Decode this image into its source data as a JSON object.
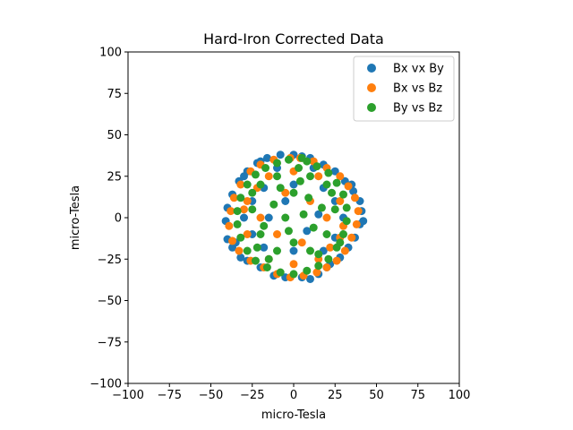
{
  "chart_data": {
    "type": "scatter",
    "title": "Hard-Iron Corrected Data",
    "xlabel": "micro-Tesla",
    "ylabel": "micro-Tesla",
    "xlim": [
      -100,
      100
    ],
    "ylim": [
      -100,
      100
    ],
    "xticks": [
      "−100",
      "−75",
      "−50",
      "−25",
      "0",
      "25",
      "50",
      "75",
      "100"
    ],
    "yticks": [
      "−100",
      "−75",
      "−50",
      "−25",
      "0",
      "25",
      "50",
      "75",
      "100"
    ],
    "grid": false,
    "legend_position": "top-right",
    "series": [
      {
        "name": "Bx vx By",
        "color": "#1f77b4",
        "points": [
          [
            0,
            38
          ],
          [
            -8,
            38
          ],
          [
            -16,
            36
          ],
          [
            -22,
            33
          ],
          [
            -28,
            28
          ],
          [
            -33,
            22
          ],
          [
            -37,
            14
          ],
          [
            -40,
            6
          ],
          [
            -41,
            -2
          ],
          [
            -40,
            -13
          ],
          [
            -37,
            -18
          ],
          [
            -32,
            -24
          ],
          [
            -28,
            -26
          ],
          [
            -20,
            -30
          ],
          [
            -12,
            -35
          ],
          [
            -5,
            -36
          ],
          [
            5,
            -36
          ],
          [
            10,
            -37
          ],
          [
            15,
            -34
          ],
          [
            22,
            -28
          ],
          [
            28,
            -24
          ],
          [
            33,
            -18
          ],
          [
            37,
            -12
          ],
          [
            40,
            -4
          ],
          [
            42,
            -2
          ],
          [
            41,
            4
          ],
          [
            40,
            10
          ],
          [
            36,
            16
          ],
          [
            31,
            22
          ],
          [
            25,
            28
          ],
          [
            18,
            32
          ],
          [
            10,
            36
          ],
          [
            5,
            37
          ],
          [
            -20,
            34
          ],
          [
            -30,
            25
          ],
          [
            35,
            20
          ],
          [
            -35,
            -15
          ],
          [
            20,
            -30
          ],
          [
            -10,
            30
          ],
          [
            12,
            30
          ],
          [
            -25,
            10
          ],
          [
            25,
            10
          ],
          [
            -25,
            -10
          ],
          [
            25,
            -12
          ],
          [
            0,
            20
          ],
          [
            0,
            -20
          ],
          [
            -15,
            0
          ],
          [
            15,
            2
          ],
          [
            -5,
            10
          ],
          [
            8,
            -8
          ],
          [
            30,
            0
          ],
          [
            -30,
            0
          ],
          [
            18,
            18
          ],
          [
            -18,
            18
          ],
          [
            -18,
            -18
          ],
          [
            18,
            -20
          ]
        ]
      },
      {
        "name": "Bx vs Bz",
        "color": "#ff7f0e",
        "points": [
          [
            -2,
            36
          ],
          [
            -12,
            35
          ],
          [
            -20,
            32
          ],
          [
            -26,
            28
          ],
          [
            -32,
            20
          ],
          [
            -36,
            12
          ],
          [
            -38,
            4
          ],
          [
            -39,
            -5
          ],
          [
            -37,
            -14
          ],
          [
            -33,
            -20
          ],
          [
            -26,
            -26
          ],
          [
            -18,
            -30
          ],
          [
            -10,
            -34
          ],
          [
            -2,
            -36
          ],
          [
            6,
            -35
          ],
          [
            14,
            -33
          ],
          [
            20,
            -30
          ],
          [
            26,
            -26
          ],
          [
            31,
            -20
          ],
          [
            35,
            -12
          ],
          [
            38,
            -4
          ],
          [
            39,
            4
          ],
          [
            37,
            12
          ],
          [
            33,
            19
          ],
          [
            28,
            25
          ],
          [
            20,
            30
          ],
          [
            12,
            34
          ],
          [
            4,
            36
          ],
          [
            -15,
            25
          ],
          [
            15,
            25
          ],
          [
            -28,
            10
          ],
          [
            28,
            10
          ],
          [
            -28,
            -10
          ],
          [
            28,
            -12
          ],
          [
            -15,
            -25
          ],
          [
            15,
            -25
          ],
          [
            -5,
            15
          ],
          [
            5,
            -15
          ],
          [
            -20,
            0
          ],
          [
            20,
            0
          ],
          [
            0,
            28
          ],
          [
            0,
            -28
          ],
          [
            -10,
            -10
          ],
          [
            10,
            10
          ],
          [
            -22,
            18
          ],
          [
            22,
            -18
          ],
          [
            30,
            -5
          ],
          [
            -30,
            5
          ]
        ]
      },
      {
        "name": "By vs Bz",
        "color": "#2ca02c",
        "points": [
          [
            5,
            36
          ],
          [
            -3,
            35
          ],
          [
            -10,
            33
          ],
          [
            -17,
            30
          ],
          [
            -23,
            26
          ],
          [
            -28,
            20
          ],
          [
            -32,
            12
          ],
          [
            -34,
            4
          ],
          [
            -34,
            -4
          ],
          [
            -32,
            -12
          ],
          [
            -28,
            -20
          ],
          [
            -23,
            -26
          ],
          [
            -16,
            -30
          ],
          [
            -8,
            -33
          ],
          [
            0,
            -34
          ],
          [
            8,
            -32
          ],
          [
            15,
            -29
          ],
          [
            21,
            -25
          ],
          [
            26,
            -18
          ],
          [
            30,
            -10
          ],
          [
            32,
            -2
          ],
          [
            32,
            6
          ],
          [
            30,
            14
          ],
          [
            26,
            21
          ],
          [
            21,
            27
          ],
          [
            14,
            31
          ],
          [
            8,
            34
          ],
          [
            -20,
            20
          ],
          [
            20,
            20
          ],
          [
            -10,
            25
          ],
          [
            10,
            25
          ],
          [
            -25,
            5
          ],
          [
            25,
            5
          ],
          [
            -20,
            -10
          ],
          [
            20,
            -10
          ],
          [
            -10,
            -20
          ],
          [
            10,
            -20
          ],
          [
            0,
            15
          ],
          [
            0,
            -15
          ],
          [
            -12,
            8
          ],
          [
            12,
            -6
          ],
          [
            -5,
            0
          ],
          [
            6,
            2
          ],
          [
            -15,
            -25
          ],
          [
            15,
            -22
          ],
          [
            -25,
            15
          ],
          [
            28,
            -15
          ],
          [
            3,
            30
          ],
          [
            -8,
            18
          ],
          [
            9,
            12
          ],
          [
            -18,
            -5
          ],
          [
            17,
            6
          ],
          [
            -3,
            -8
          ],
          [
            4,
            22
          ],
          [
            -22,
            -18
          ],
          [
            23,
            15
          ]
        ]
      }
    ]
  }
}
